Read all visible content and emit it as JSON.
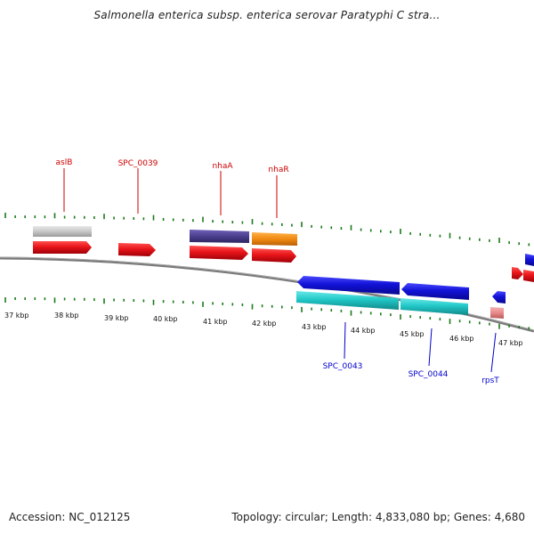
{
  "title": "Salmonella enterica subsp. enterica serovar Paratyphi C stra...",
  "footer": {
    "accession_label": "Accession:",
    "accession": "NC_012125",
    "topology_text": "Topology: circular; Length: 4,833,080 bp; Genes: 4,680"
  },
  "colors": {
    "backbone": "#7a7a7a",
    "tick": "#1a7a1a",
    "cds_red": "#e8151a",
    "gray": "#c8c8c8",
    "purple": "#4b3f8e",
    "orange": "#f08a12",
    "blue": "#1212d8",
    "cyan": "#22c8c8",
    "pink": "#e88a8a",
    "label_red": "#cc0000",
    "label_blue": "#0000cc"
  },
  "axis": {
    "unit": "kbp",
    "ticks": [
      37,
      38,
      39,
      40,
      41,
      42,
      43,
      44,
      45,
      46,
      47
    ]
  },
  "gene_labels_top": [
    {
      "name": "aslB",
      "color_key": "label_red"
    },
    {
      "name": "SPC_0039",
      "color_key": "label_red"
    },
    {
      "name": "nhaA",
      "color_key": "label_red"
    },
    {
      "name": "nhaR",
      "color_key": "label_red"
    }
  ],
  "gene_labels_bottom": [
    {
      "name": "SPC_0043",
      "color_key": "label_blue"
    },
    {
      "name": "SPC_0044",
      "color_key": "label_blue"
    },
    {
      "name": "rpsT",
      "color_key": "label_blue"
    }
  ]
}
